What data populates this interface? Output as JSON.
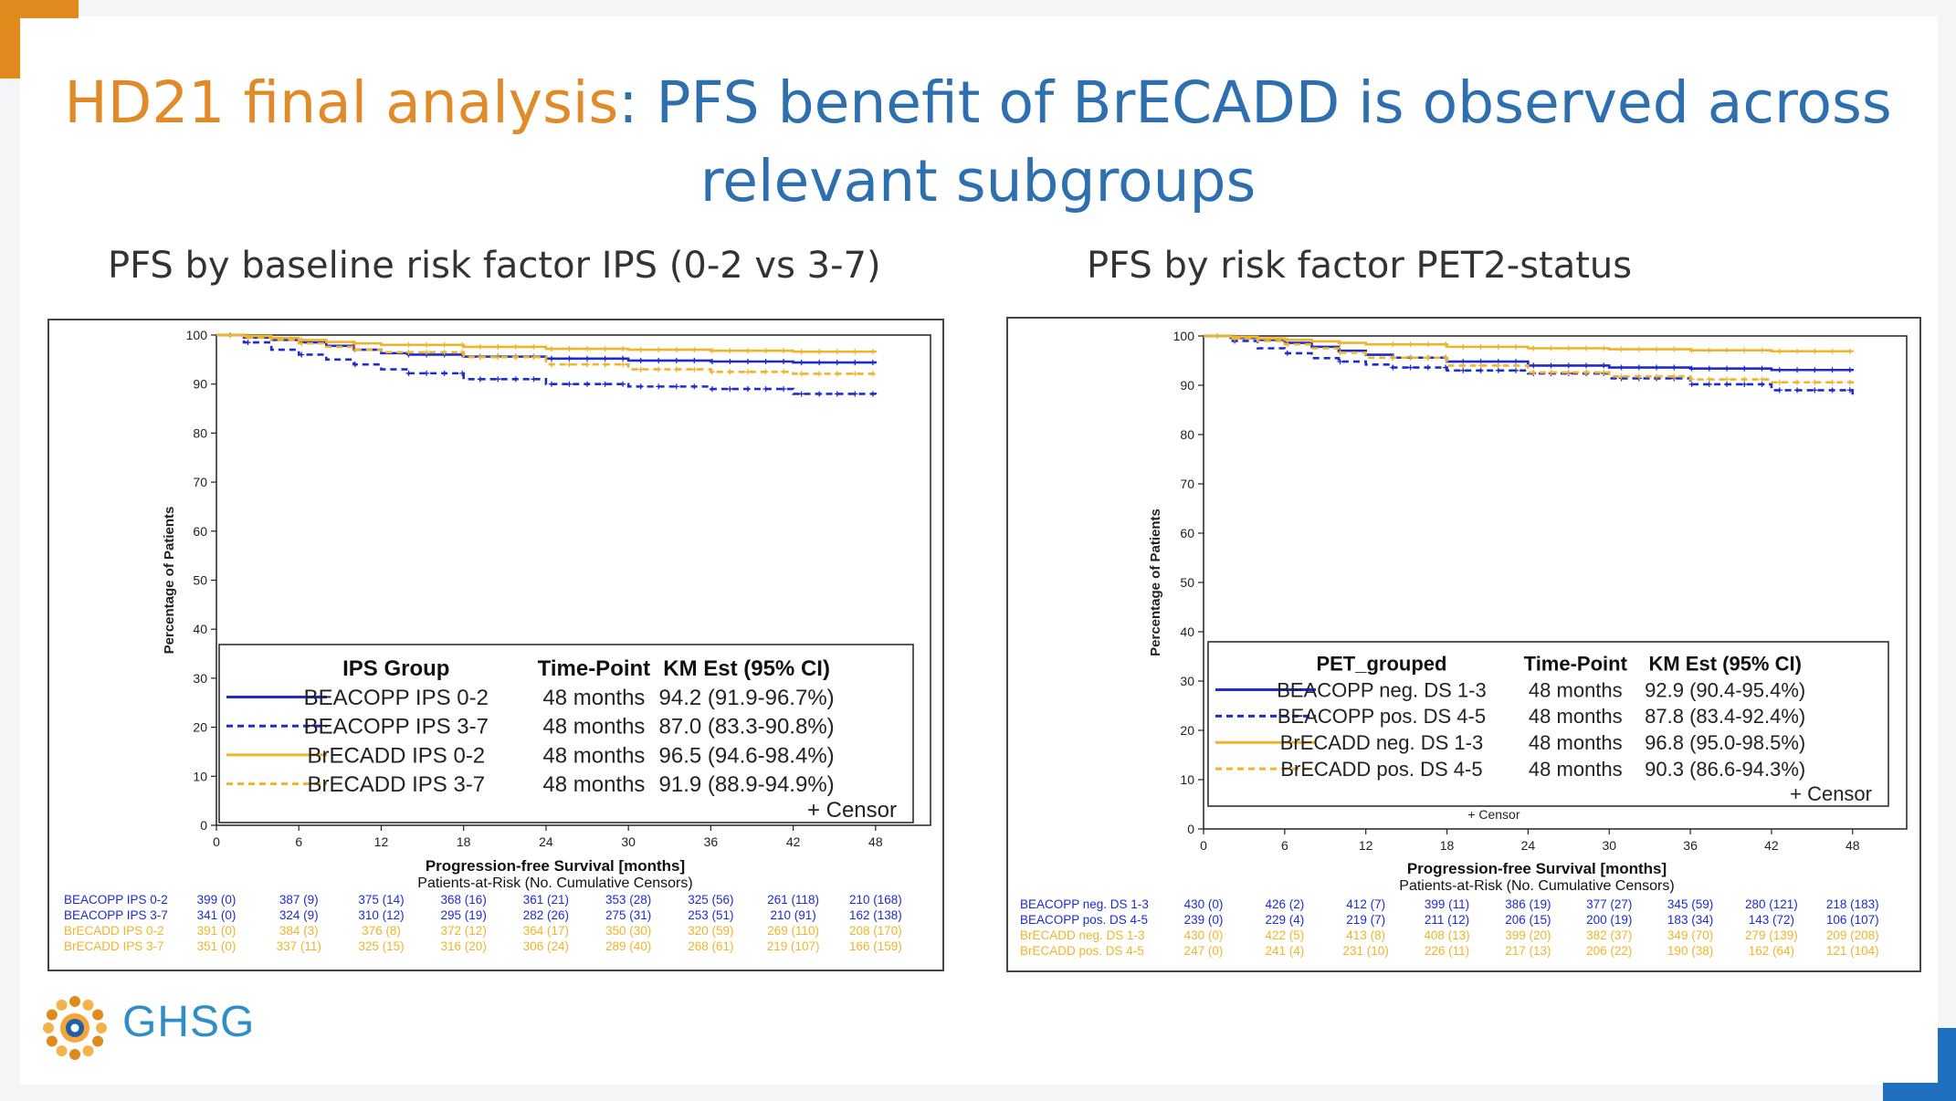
{
  "slide": {
    "title_part1": "HD21 final analysis",
    "title_part2": ": PFS benefit of BrECADD is observed across",
    "title_line2": "relevant subgroups",
    "logo_text": "GHSG",
    "colors": {
      "orange": "#e08a2a",
      "blue": "#2e6fb0",
      "series_blue": "#1f2bd0",
      "series_orange": "#f0b428"
    }
  },
  "left": {
    "heading": "PFS by baseline risk factor IPS (0-2 vs 3-7)"
  },
  "right": {
    "heading": "PFS by risk factor PET2-status"
  },
  "chart_data": [
    {
      "type": "line",
      "ylabel": "Percentage of Patients",
      "xlabel": "Progression-free Survival [months]",
      "x_ticks": [
        0,
        6,
        12,
        18,
        24,
        30,
        36,
        42,
        48
      ],
      "y_ticks": [
        0,
        10,
        20,
        30,
        40,
        50,
        60,
        70,
        80,
        90,
        100
      ],
      "xlim": [
        0,
        52
      ],
      "ylim": [
        0,
        100
      ],
      "legend": {
        "headers": [
          "IPS Group",
          "Time-Point",
          "KM Est (95% CI)"
        ],
        "censor_label": "+ Censor",
        "rows": [
          {
            "name": "BEACOPP IPS 0-2",
            "time": "48 months",
            "est": "94.2 (91.9-96.7%)",
            "color": "#1f2bd0",
            "dashed": false
          },
          {
            "name": "BEACOPP IPS 3-7",
            "time": "48 months",
            "est": "87.0 (83.3-90.8%)",
            "color": "#1f2bd0",
            "dashed": true
          },
          {
            "name": "BrECADD IPS 0-2",
            "time": "48 months",
            "est": "96.5 (94.6-98.4%)",
            "color": "#f0b428",
            "dashed": false
          },
          {
            "name": "BrECADD IPS 3-7",
            "time": "48 months",
            "est": "91.9 (88.9-94.9%)",
            "color": "#f0b428",
            "dashed": true
          }
        ]
      },
      "series": [
        {
          "name": "BEACOPP IPS 0-2",
          "color": "#1f2bd0",
          "dashed": false,
          "x": [
            0,
            2,
            4,
            6,
            8,
            10,
            12,
            14,
            18,
            24,
            30,
            36,
            42,
            48
          ],
          "y": [
            100,
            99.5,
            99,
            98.5,
            97.8,
            97,
            96.3,
            96,
            95.6,
            95.2,
            94.8,
            94.6,
            94.4,
            94.2
          ]
        },
        {
          "name": "BEACOPP IPS 3-7",
          "color": "#1f2bd0",
          "dashed": true,
          "x": [
            0,
            2,
            4,
            6,
            8,
            10,
            12,
            14,
            18,
            24,
            30,
            36,
            42,
            48
          ],
          "y": [
            100,
            98.5,
            97,
            96,
            95,
            94,
            93,
            92.2,
            91,
            90,
            89.5,
            89,
            88,
            87.0
          ]
        },
        {
          "name": "BrECADD IPS 0-2",
          "color": "#f0b428",
          "dashed": false,
          "x": [
            0,
            2,
            4,
            6,
            8,
            10,
            12,
            18,
            24,
            30,
            36,
            42,
            48
          ],
          "y": [
            100,
            99.8,
            99.4,
            99,
            98.6,
            98.3,
            98,
            97.6,
            97.2,
            97,
            96.8,
            96.6,
            96.5
          ]
        },
        {
          "name": "BrECADD IPS 3-7",
          "color": "#f0b428",
          "dashed": true,
          "x": [
            0,
            2,
            4,
            6,
            8,
            10,
            12,
            18,
            24,
            30,
            36,
            42,
            48
          ],
          "y": [
            100,
            99.5,
            99,
            98.3,
            97.6,
            97,
            96.5,
            95.5,
            94,
            93,
            92.5,
            92.1,
            91.9
          ]
        }
      ],
      "risk_table": {
        "title": "Patients-at-Risk (No. Cumulative Censors)",
        "rows": [
          {
            "label": "BEACOPP IPS 0-2",
            "color": "#1f2bd0",
            "cells": [
              "399 (0)",
              "387 (9)",
              "375 (14)",
              "368 (16)",
              "361 (21)",
              "353 (28)",
              "325 (56)",
              "261 (118)",
              "210 (168)"
            ]
          },
          {
            "label": "BEACOPP IPS 3-7",
            "color": "#1f2bd0",
            "cells": [
              "341 (0)",
              "324 (9)",
              "310 (12)",
              "295 (19)",
              "282 (26)",
              "275 (31)",
              "253 (51)",
              "210 (91)",
              "162 (138)"
            ]
          },
          {
            "label": "BrECADD IPS 0-2",
            "color": "#f0b428",
            "cells": [
              "391 (0)",
              "384 (3)",
              "376 (8)",
              "372 (12)",
              "364 (17)",
              "350 (30)",
              "320 (59)",
              "269 (110)",
              "208 (170)"
            ]
          },
          {
            "label": "BrECADD IPS 3-7",
            "color": "#f0b428",
            "cells": [
              "351 (0)",
              "337 (11)",
              "325 (15)",
              "316 (20)",
              "306 (24)",
              "289 (40)",
              "268 (61)",
              "219 (107)",
              "166 (159)"
            ]
          }
        ]
      }
    },
    {
      "type": "line",
      "ylabel": "Percentage of Patients",
      "xlabel": "Progression-free Survival [months]",
      "x_ticks": [
        0,
        6,
        12,
        18,
        24,
        30,
        36,
        42,
        48
      ],
      "y_ticks": [
        0,
        10,
        20,
        30,
        40,
        50,
        60,
        70,
        80,
        90,
        100
      ],
      "xlim": [
        0,
        52
      ],
      "ylim": [
        0,
        100
      ],
      "legend": {
        "headers": [
          "PET_grouped",
          "Time-Point",
          "KM Est (95% CI)"
        ],
        "censor_label": "+ Censor",
        "rows": [
          {
            "name": "BEACOPP neg. DS 1-3",
            "time": "48 months",
            "est": "92.9 (90.4-95.4%)",
            "color": "#1f2bd0",
            "dashed": false
          },
          {
            "name": "BEACOPP pos. DS 4-5",
            "time": "48 months",
            "est": "87.8 (83.4-92.4%)",
            "color": "#1f2bd0",
            "dashed": true
          },
          {
            "name": "BrECADD neg. DS 1-3",
            "time": "48 months",
            "est": "96.8 (95.0-98.5%)",
            "color": "#f0b428",
            "dashed": false
          },
          {
            "name": "BrECADD pos. DS 4-5",
            "time": "48 months",
            "est": "90.3 (86.6-94.3%)",
            "color": "#f0b428",
            "dashed": true
          }
        ]
      },
      "bottom_note": "+ Censor",
      "series": [
        {
          "name": "BEACOPP neg. DS 1-3",
          "color": "#1f2bd0",
          "dashed": false,
          "x": [
            0,
            2,
            4,
            6,
            8,
            10,
            12,
            14,
            18,
            24,
            30,
            36,
            42,
            48
          ],
          "y": [
            100,
            99.6,
            99.2,
            98.6,
            97.8,
            97,
            96.2,
            95.6,
            94.8,
            94,
            93.6,
            93.4,
            93.1,
            92.9
          ]
        },
        {
          "name": "BEACOPP pos. DS 4-5",
          "color": "#1f2bd0",
          "dashed": true,
          "x": [
            0,
            2,
            4,
            6,
            8,
            10,
            12,
            14,
            18,
            24,
            30,
            36,
            42,
            48
          ],
          "y": [
            100,
            99,
            97.5,
            96.5,
            95.5,
            94.8,
            94.2,
            93.6,
            93,
            92.4,
            91.4,
            90.2,
            89,
            87.8
          ]
        },
        {
          "name": "BrECADD neg. DS 1-3",
          "color": "#f0b428",
          "dashed": false,
          "x": [
            0,
            2,
            4,
            6,
            8,
            10,
            12,
            18,
            24,
            30,
            36,
            42,
            48
          ],
          "y": [
            100,
            99.8,
            99.5,
            99.2,
            98.9,
            98.6,
            98.3,
            97.8,
            97.5,
            97.3,
            97.1,
            96.9,
            96.8
          ]
        },
        {
          "name": "BrECADD pos. DS 4-5",
          "color": "#f0b428",
          "dashed": true,
          "x": [
            0,
            2,
            4,
            6,
            8,
            10,
            12,
            18,
            24,
            30,
            36,
            42,
            48
          ],
          "y": [
            100,
            99.5,
            99,
            98.3,
            97.5,
            96.6,
            95.6,
            94,
            92.6,
            91.8,
            91.2,
            90.6,
            90.3
          ]
        }
      ],
      "risk_table": {
        "title": "Patients-at-Risk (No. Cumulative Censors)",
        "rows": [
          {
            "label": "BEACOPP neg. DS 1-3",
            "color": "#1f2bd0",
            "cells": [
              "430 (0)",
              "426 (2)",
              "412 (7)",
              "399 (11)",
              "386 (19)",
              "377 (27)",
              "345 (59)",
              "280 (121)",
              "218 (183)"
            ]
          },
          {
            "label": "BEACOPP pos. DS 4-5",
            "color": "#1f2bd0",
            "cells": [
              "239 (0)",
              "229 (4)",
              "219 (7)",
              "211 (12)",
              "206 (15)",
              "200 (19)",
              "183 (34)",
              "143 (72)",
              "106 (107)"
            ]
          },
          {
            "label": "BrECADD neg. DS 1-3",
            "color": "#f0b428",
            "cells": [
              "430 (0)",
              "422 (5)",
              "413 (8)",
              "408 (13)",
              "399 (20)",
              "382 (37)",
              "349 (70)",
              "279 (139)",
              "209 (208)"
            ]
          },
          {
            "label": "BrECADD pos. DS 4-5",
            "color": "#f0b428",
            "cells": [
              "247 (0)",
              "241 (4)",
              "231 (10)",
              "226 (11)",
              "217 (13)",
              "206 (22)",
              "190 (38)",
              "162 (64)",
              "121 (104)"
            ]
          }
        ]
      }
    }
  ]
}
